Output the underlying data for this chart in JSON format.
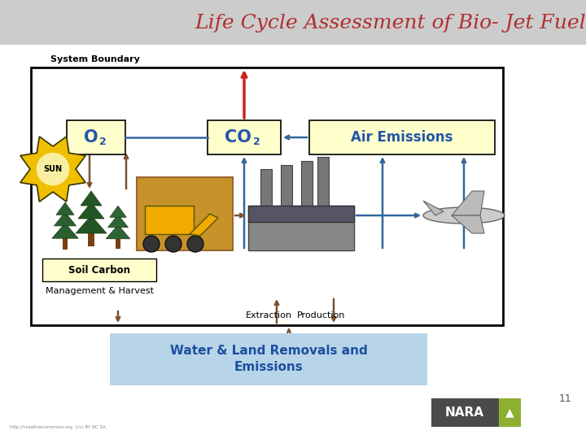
{
  "title": "Life Cycle Assessment of Bio- Jet Fuel",
  "title_color": "#b03030",
  "title_fontsize": 18,
  "title_style": "italic",
  "header_bg": "#cccccc",
  "slide_bg": "#ffffff",
  "system_boundary_label": "System Boundary",
  "o2_label": "O",
  "o2_sub": "2",
  "co2_label": "CO",
  "co2_sub": "2",
  "air_emissions_label": "Air Emissions",
  "soil_carbon_label": "Soil Carbon",
  "mgmt_harvest_label": "Management & Harvest",
  "extraction_label": "Extraction",
  "production_label": "Production",
  "water_land_line1": "Water & Land Removals and",
  "water_land_line2": "Emissions",
  "water_land_bg": "#b8d4e8",
  "water_land_color": "#1a4fa0",
  "sun_label": "SUN",
  "nara_bg": "#4a4a4a",
  "nara_green": "#8db030",
  "page_num": "11",
  "yellow_bg": "#ffffcc",
  "arrow_blue": "#336699",
  "arrow_brown": "#7a5230",
  "arrow_red": "#cc2222",
  "label_blue": "#2255aa"
}
